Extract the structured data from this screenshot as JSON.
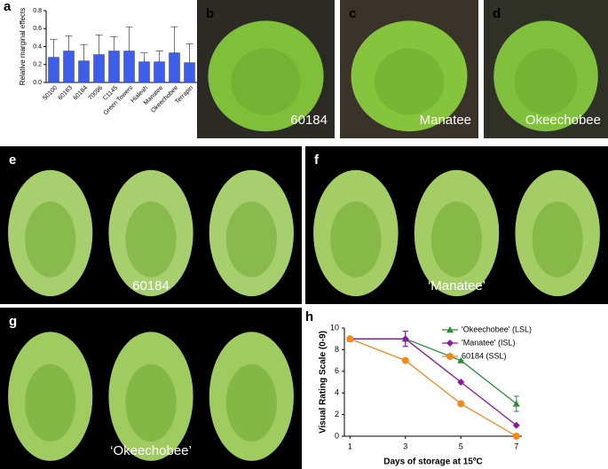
{
  "chart_data": [
    {
      "type": "bar",
      "panel": "a",
      "ylabel": "Relative marginal effects",
      "categories": [
        "50100",
        "60183",
        "60184",
        "70096",
        "C1145",
        "Green Towers",
        "Hialeah",
        "Manatee",
        "Okeechobee",
        "Terrapin"
      ],
      "values": [
        0.28,
        0.35,
        0.24,
        0.31,
        0.35,
        0.35,
        0.23,
        0.23,
        0.33,
        0.22
      ],
      "errors": [
        0.2,
        0.17,
        0.18,
        0.22,
        0.16,
        0.27,
        0.1,
        0.12,
        0.29,
        0.21
      ],
      "color": "#3d5ee8",
      "ylim": [
        0,
        0.8
      ],
      "yticks": [
        {
          "value": 0,
          "label": "0.0"
        },
        0.2,
        0.4,
        0.6,
        0.8
      ]
    },
    {
      "type": "line",
      "panel": "h",
      "xlabel": "Days of storage at 15ºC",
      "ylabel": "Visual Rating Scale (0-9)",
      "x": [
        1,
        3,
        5,
        7
      ],
      "series": [
        {
          "name": "'Okeechobee' (LSL)",
          "color": "#2e8b3a",
          "marker": "triangle",
          "values": [
            9,
            9,
            7,
            3
          ],
          "errors": [
            0,
            0.7,
            0,
            0.7
          ]
        },
        {
          "name": "'Manatee' (ISL)",
          "color": "#8a1a96",
          "marker": "diamond",
          "values": [
            9,
            9,
            5,
            1
          ],
          "errors": [
            0,
            0.7,
            0,
            0
          ]
        },
        {
          "name": "60184 (SSL)",
          "color": "#f08a1c",
          "marker": "circle",
          "values": [
            9,
            7,
            3,
            0
          ],
          "errors": [
            0,
            0,
            0,
            0
          ]
        }
      ],
      "xlim": [
        0.8,
        7.2
      ],
      "xticks": [
        1,
        3,
        5,
        7
      ],
      "ylim": [
        0,
        10
      ],
      "yticks": [
        0,
        2,
        4,
        6,
        8,
        10
      ],
      "legend": "upper right"
    }
  ],
  "photos": [
    {
      "letter": "b",
      "caption": "60184"
    },
    {
      "letter": "c",
      "caption": "Manatee"
    },
    {
      "letter": "d",
      "caption": "Okeechobee"
    },
    {
      "letter": "e",
      "caption": "60184"
    },
    {
      "letter": "f",
      "caption": "‘Manatee’"
    },
    {
      "letter": "g",
      "caption": "‘Okeechobee’"
    }
  ]
}
